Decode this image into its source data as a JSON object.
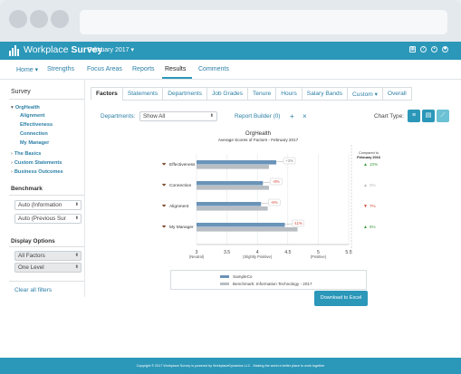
{
  "header": {
    "brand_light": "Workplace ",
    "brand_bold": "Survey",
    "period": "February 2017 ▾"
  },
  "nav": {
    "items": [
      "Home ▾",
      "Strengths",
      "Focus Areas",
      "Reports",
      "Results",
      "Comments"
    ],
    "active": "Results"
  },
  "sidebar": {
    "survey_heading": "Survey",
    "tree": {
      "root": "OrgHealth",
      "children": [
        "Alignment",
        "Effectiveness",
        "Connection",
        "My Manager"
      ],
      "others": [
        "The Basics",
        "Custom Statements",
        "Business Outcomes"
      ]
    },
    "benchmark_heading": "Benchmark",
    "benchmark_selects": [
      "Auto (Information",
      "Auto (Previous Sur"
    ],
    "display_heading": "Display Options",
    "display_selects": [
      "All Factors",
      "One Level"
    ],
    "clear_filters": "Clear all filters"
  },
  "tabs": [
    "Factors",
    "Statements",
    "Departments",
    "Job Grades",
    "Tenure",
    "Hours",
    "Salary Bands",
    "Custom ▾",
    "Overall"
  ],
  "toolbar": {
    "departments_label": "Departments:",
    "departments_value": "Show All",
    "report_builder": "Report Builder (0)",
    "plus": "+",
    "close": "×",
    "chart_type_label": "Chart Type:"
  },
  "chart_data": {
    "type": "bar",
    "title": "OrgHealth",
    "subtitle": "Average Scores of Factors - February 2017",
    "compare_header_1": "Compared to",
    "compare_header_2": "February 2016",
    "categories": [
      "Effectiveness",
      "Connection",
      "Alignment",
      "My Manager"
    ],
    "series": [
      {
        "name": "SampleCo",
        "values": [
          4.31,
          4.09,
          4.06,
          4.45
        ],
        "color": "#6a93b8"
      },
      {
        "name": "Benchmark: Information Technology - 2017",
        "values": [
          4.19,
          4.19,
          4.17,
          4.66
        ],
        "color": "#b9bec3"
      }
    ],
    "differences": [
      "+3%",
      "-8%",
      "-6%",
      "-11%"
    ],
    "changes": [
      {
        "arrow": "▲",
        "value": "10%",
        "color": "#3c9b3c"
      },
      {
        "arrow": "▲",
        "value": "0%",
        "color": "#b8b8b8"
      },
      {
        "arrow": "▼",
        "value": "7%",
        "color": "#d44a3a"
      },
      {
        "arrow": "▲",
        "value": "5%",
        "color": "#3c9b3c"
      }
    ],
    "xlim": [
      3,
      5.5
    ],
    "ticks": [
      {
        "value": 3,
        "label": "3",
        "sub": "(Neutral)"
      },
      {
        "value": 3.5,
        "label": "3.5",
        "sub": ""
      },
      {
        "value": 4,
        "label": "4",
        "sub": "(Slightly Positive)"
      },
      {
        "value": 4.5,
        "label": "4.5",
        "sub": ""
      },
      {
        "value": 5,
        "label": "5",
        "sub": "(Positive)"
      },
      {
        "value": 5.5,
        "label": "5.5",
        "sub": ""
      }
    ]
  },
  "download_button": "Download to Excel",
  "footer_text": "Copyright © 2017 Workplace Survey is powered by WorkplaceDynamics LLC - Making the world a better place to work together"
}
